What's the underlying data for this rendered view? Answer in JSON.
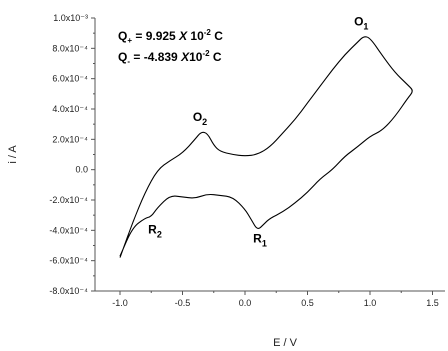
{
  "chart_data": {
    "type": "line",
    "xlabel": "E / V",
    "ylabel": "i / A",
    "xlim": [
      -1.2,
      1.6
    ],
    "ylim": [
      -0.0008,
      0.001
    ],
    "x_ticks": [
      {
        "value": -1.0,
        "label": "-1.0"
      },
      {
        "value": -0.5,
        "label": "-0.5"
      },
      {
        "value": 0.0,
        "label": "0.0"
      },
      {
        "value": 0.5,
        "label": "0.5"
      },
      {
        "value": 1.0,
        "label": "1.0"
      },
      {
        "value": 1.5,
        "label": "1.5"
      }
    ],
    "y_ticks": [
      {
        "value": -0.0008,
        "label": "-8.0x10⁻⁴"
      },
      {
        "value": -0.0006,
        "label": "-6.0x10⁻⁴"
      },
      {
        "value": -0.0004,
        "label": "-4.0x10⁻⁴"
      },
      {
        "value": -0.0002,
        "label": "-2.0x10⁻⁴"
      },
      {
        "value": 0.0,
        "label": "0.0"
      },
      {
        "value": 0.0002,
        "label": "2.0x10⁻⁴"
      },
      {
        "value": 0.0004,
        "label": "4.0x10⁻⁴"
      },
      {
        "value": 0.0006,
        "label": "6.0x10⁻⁴"
      },
      {
        "value": 0.0008,
        "label": "8.0x10⁻⁴"
      },
      {
        "value": 0.001,
        "label": "1.0x10⁻³"
      }
    ],
    "series": [
      {
        "color": "#000000",
        "x": [
          -1.0,
          -0.9,
          -0.8,
          -0.7,
          -0.6,
          -0.5,
          -0.4,
          -0.35,
          -0.3,
          -0.25,
          -0.2,
          -0.1,
          0.0,
          0.1,
          0.2,
          0.3,
          0.4,
          0.5,
          0.6,
          0.7,
          0.8,
          0.9,
          0.95,
          1.0,
          1.1,
          1.2,
          1.3,
          1.35,
          1.3,
          1.2,
          1.1,
          1.0,
          0.9,
          0.8,
          0.7,
          0.6,
          0.5,
          0.4,
          0.3,
          0.2,
          0.15,
          0.1,
          0.05,
          0.0,
          -0.1,
          -0.2,
          -0.3,
          -0.4,
          -0.5,
          -0.6,
          -0.7,
          -0.75,
          -0.8,
          -0.9,
          -1.0
        ],
        "y": [
          -0.00058,
          -0.00035,
          -0.00015,
          0.0,
          6e-05,
          0.00011,
          0.0002,
          0.00025,
          0.00024,
          0.00016,
          0.00012,
          0.0001,
          9e-05,
          0.0001,
          0.00015,
          0.00024,
          0.00033,
          0.00044,
          0.00055,
          0.00066,
          0.00076,
          0.00084,
          0.00088,
          0.00087,
          0.00075,
          0.00064,
          0.00056,
          0.00052,
          0.00047,
          0.00035,
          0.00026,
          0.00022,
          0.00015,
          9e-05,
          0.0,
          -6e-05,
          -0.00015,
          -0.00022,
          -0.00028,
          -0.00032,
          -0.00036,
          -0.0004,
          -0.00033,
          -0.00026,
          -0.00018,
          -0.00017,
          -0.00016,
          -0.00019,
          -0.00018,
          -0.00017,
          -0.00025,
          -0.00031,
          -0.00032,
          -0.00038,
          -0.00057
        ]
      }
    ],
    "peak_labels": [
      {
        "text": "O",
        "sub": "1",
        "x": 0.93,
        "y": 0.00095
      },
      {
        "text": "O",
        "sub": "2",
        "x": -0.36,
        "y": 0.00032
      },
      {
        "text": "R",
        "sub": "1",
        "x": 0.12,
        "y": -0.00048
      },
      {
        "text": "R",
        "sub": "2",
        "x": -0.72,
        "y": -0.00042
      }
    ],
    "charge_labels": {
      "q_plus": {
        "text": "Q",
        "sub": "+",
        "value": " = 9.925 ",
        "times": "X",
        "base": " 10",
        "exp": "-2",
        "unit": " C"
      },
      "q_minus": {
        "text": "Q",
        "sub": "-",
        "value": " = -4.839 ",
        "times": "X",
        "base": "10",
        "exp": "-2",
        "unit": " C"
      }
    }
  }
}
